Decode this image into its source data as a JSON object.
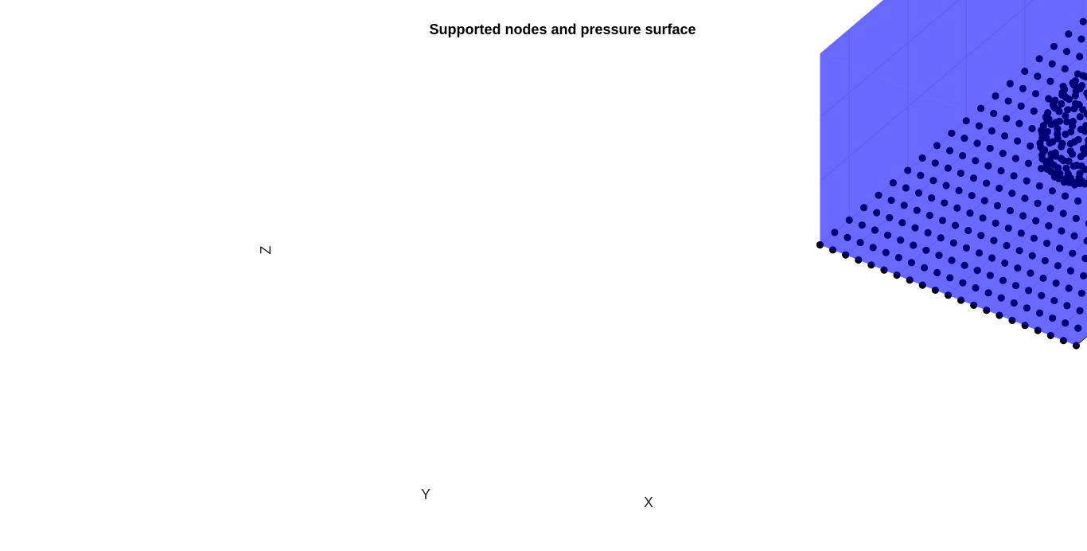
{
  "chart_data": {
    "type": "scatter3d",
    "title": "Supported nodes and pressure surface",
    "xlabel": "X",
    "ylabel": "Y",
    "zlabel": "Z",
    "xlim": [
      -2.5,
      2.5
    ],
    "ylim": [
      -2.5,
      2.5
    ],
    "zlim": [
      -3,
      0
    ],
    "xticks": [
      "-2",
      "-1",
      "0",
      "1",
      "2"
    ],
    "yticks": [
      "-2",
      "-1",
      "0",
      "1",
      "2"
    ],
    "zticks": [
      "-3",
      "-2",
      "-1",
      "0"
    ],
    "grid": true,
    "grid_nodes": {
      "z": -3,
      "start": -2.5,
      "step": 0.25,
      "count_per_axis": 21
    },
    "sphere_nodes": {
      "center": [
        0,
        0,
        -2.3
      ],
      "radius": 0.7,
      "count": 220
    },
    "pressure_surface": {
      "box_x": [
        -2.5,
        2.5
      ],
      "box_y": [
        -2.5,
        2.5
      ],
      "box_z": [
        -3,
        0
      ],
      "color": "#0000ff",
      "opacity": 0.45
    },
    "marker_color": "#000000"
  }
}
